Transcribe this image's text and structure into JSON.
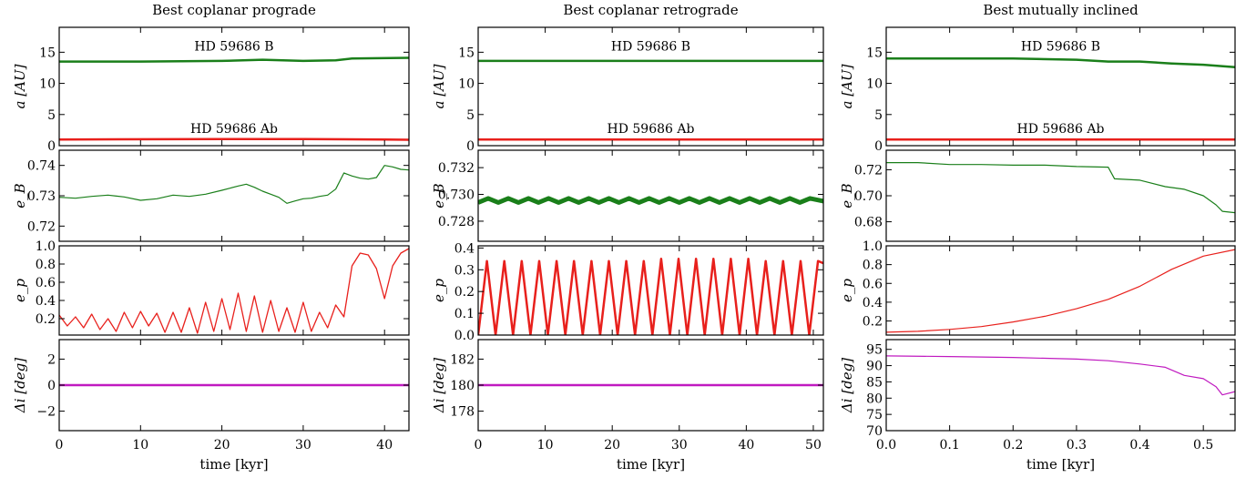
{
  "chart_data": [
    {
      "type": "line",
      "title": "Best coplanar prograde",
      "xlabel": "time [kyr]",
      "xlim": [
        0,
        43
      ],
      "xticks": [
        0,
        10,
        20,
        30,
        40
      ],
      "panels": [
        {
          "ylabel": "a [AU]",
          "ylim": [
            0,
            19
          ],
          "yticks": [
            0,
            5,
            10,
            15
          ],
          "annotations": [
            {
              "text": "HD 59686 B",
              "x": 21.5,
              "y": 16
            },
            {
              "text": "HD 59686 Ab",
              "x": 21.5,
              "y": 2.8
            }
          ],
          "series": [
            {
              "name": "HD 59686 B",
              "color": "#1a7f1a",
              "width": 2.5,
              "x": [
                0,
                10,
                20,
                25,
                30,
                34,
                36,
                43
              ],
              "y": [
                13.5,
                13.5,
                13.6,
                13.8,
                13.6,
                13.7,
                14.0,
                14.1
              ]
            },
            {
              "name": "HD 59686 Ab",
              "color": "#e8201c",
              "width": 2.5,
              "x": [
                0,
                20,
                30,
                40,
                43
              ],
              "y": [
                1.0,
                1.05,
                1.05,
                1.0,
                0.95
              ]
            }
          ]
        },
        {
          "ylabel": "e_B",
          "ylim": [
            0.715,
            0.745
          ],
          "yticks": [
            0.72,
            0.73,
            0.74
          ],
          "series": [
            {
              "color": "#1a7f1a",
              "width": 1.2,
              "x": [
                0,
                2,
                4,
                6,
                8,
                10,
                12,
                14,
                16,
                18,
                20,
                21,
                22,
                23,
                24,
                25,
                26,
                27,
                28,
                29,
                30,
                31,
                32,
                33,
                34,
                35,
                36,
                37,
                38,
                39,
                40,
                41,
                42,
                43
              ],
              "y": [
                0.7295,
                0.7292,
                0.7298,
                0.7302,
                0.7296,
                0.7285,
                0.729,
                0.7302,
                0.7298,
                0.7305,
                0.7318,
                0.7325,
                0.7332,
                0.7338,
                0.7328,
                0.7315,
                0.7305,
                0.7295,
                0.7275,
                0.7283,
                0.729,
                0.7292,
                0.7298,
                0.7302,
                0.7322,
                0.7375,
                0.7365,
                0.7358,
                0.7355,
                0.736,
                0.74,
                0.7395,
                0.7387,
                0.7385
              ]
            }
          ]
        },
        {
          "ylabel": "e_p",
          "ylim": [
            0.02,
            1.0
          ],
          "yticks": [
            0.2,
            0.4,
            0.6,
            0.8,
            1.0
          ],
          "series": [
            {
              "color": "#e8201c",
              "width": 1.3,
              "x": [
                0,
                1,
                2,
                3,
                4,
                5,
                6,
                7,
                8,
                9,
                10,
                11,
                12,
                13,
                14,
                15,
                16,
                17,
                18,
                19,
                20,
                21,
                22,
                23,
                24,
                25,
                26,
                27,
                28,
                29,
                30,
                31,
                32,
                33,
                34,
                35,
                36,
                37,
                38,
                39,
                40,
                41,
                42,
                43
              ],
              "y": [
                0.24,
                0.12,
                0.22,
                0.1,
                0.25,
                0.08,
                0.2,
                0.06,
                0.27,
                0.1,
                0.28,
                0.12,
                0.26,
                0.05,
                0.27,
                0.05,
                0.32,
                0.04,
                0.38,
                0.06,
                0.42,
                0.08,
                0.48,
                0.06,
                0.45,
                0.05,
                0.4,
                0.06,
                0.32,
                0.05,
                0.38,
                0.06,
                0.27,
                0.1,
                0.35,
                0.22,
                0.78,
                0.92,
                0.9,
                0.75,
                0.42,
                0.78,
                0.92,
                0.97
              ]
            }
          ]
        },
        {
          "ylabel": "Δi [deg]",
          "ylim": [
            -3.5,
            3.5
          ],
          "yticks": [
            -2,
            0,
            2
          ],
          "series": [
            {
              "color": "#c01ac0",
              "width": 2.5,
              "x": [
                0,
                43
              ],
              "y": [
                0,
                0
              ]
            }
          ]
        }
      ]
    },
    {
      "type": "line",
      "title": "Best coplanar retrograde",
      "xlabel": "time [kyr]",
      "xlim": [
        0,
        51.5
      ],
      "xticks": [
        0,
        10,
        20,
        30,
        40,
        50
      ],
      "panels": [
        {
          "ylabel": "a [AU]",
          "ylim": [
            0,
            19
          ],
          "yticks": [
            0,
            5,
            10,
            15
          ],
          "annotations": [
            {
              "text": "HD 59686 B",
              "x": 25.75,
              "y": 16
            },
            {
              "text": "HD 59686 Ab",
              "x": 25.75,
              "y": 2.8
            }
          ],
          "series": [
            {
              "name": "HD 59686 B",
              "color": "#1a7f1a",
              "width": 2.5,
              "x": [
                0,
                51.5
              ],
              "y": [
                13.6,
                13.6
              ]
            },
            {
              "name": "HD 59686 Ab",
              "color": "#e8201c",
              "width": 2.5,
              "x": [
                0,
                51.5
              ],
              "y": [
                1.0,
                1.0
              ]
            }
          ]
        },
        {
          "ylabel": "e_B",
          "ylim": [
            0.7265,
            0.7333
          ],
          "yticks": [
            0.728,
            0.73,
            0.732
          ],
          "series": [
            {
              "color": "#1a7f1a",
              "width": 5,
              "x": [
                0,
                1.5,
                3,
                4.5,
                6,
                7.5,
                9,
                10.5,
                12,
                13.5,
                15,
                16.5,
                18,
                19.5,
                21,
                22.5,
                24,
                25.5,
                27,
                28.5,
                30,
                31.5,
                33,
                34.5,
                36,
                37.5,
                39,
                40.5,
                42,
                43.5,
                45,
                46.5,
                48,
                49.5,
                51.5
              ],
              "y": [
                0.7294,
                0.7297,
                0.7294,
                0.7297,
                0.7294,
                0.7297,
                0.7294,
                0.7297,
                0.7294,
                0.7297,
                0.7294,
                0.7297,
                0.7294,
                0.7297,
                0.7294,
                0.7297,
                0.7294,
                0.7297,
                0.7294,
                0.7297,
                0.7294,
                0.7297,
                0.7294,
                0.7297,
                0.7294,
                0.7297,
                0.7294,
                0.7297,
                0.7294,
                0.7297,
                0.7294,
                0.7297,
                0.7294,
                0.7297,
                0.7295
              ]
            }
          ]
        },
        {
          "ylabel": "e_p",
          "ylim": [
            0.0,
            0.41
          ],
          "yticks": [
            0.0,
            0.1,
            0.2,
            0.3,
            0.4
          ],
          "series": [
            {
              "color": "#e8201c",
              "width": 2.5,
              "x": [
                0,
                1.3,
                2.6,
                3.9,
                5.2,
                6.5,
                7.8,
                9.1,
                10.4,
                11.7,
                13.0,
                14.3,
                15.6,
                16.9,
                18.2,
                19.5,
                20.8,
                22.1,
                23.4,
                24.7,
                26.0,
                27.3,
                28.6,
                29.9,
                31.2,
                32.5,
                33.8,
                35.1,
                36.4,
                37.7,
                39.0,
                40.3,
                41.6,
                42.9,
                44.2,
                45.5,
                46.8,
                48.1,
                49.4,
                50.7,
                51.5
              ],
              "y": [
                0.0,
                0.34,
                0.0,
                0.34,
                0.0,
                0.34,
                0.0,
                0.34,
                0.0,
                0.34,
                0.0,
                0.34,
                0.0,
                0.34,
                0.0,
                0.34,
                0.0,
                0.34,
                0.0,
                0.34,
                0.0,
                0.35,
                0.0,
                0.35,
                0.0,
                0.35,
                0.0,
                0.35,
                0.0,
                0.35,
                0.0,
                0.35,
                0.0,
                0.34,
                0.0,
                0.34,
                0.0,
                0.34,
                0.0,
                0.34,
                0.33
              ]
            }
          ]
        },
        {
          "ylabel": "Δi [deg]",
          "ylim": [
            176.5,
            183.5
          ],
          "yticks": [
            178,
            180,
            182
          ],
          "series": [
            {
              "color": "#c01ac0",
              "width": 2.5,
              "x": [
                0,
                51.5
              ],
              "y": [
                180,
                180
              ]
            }
          ]
        }
      ]
    },
    {
      "type": "line",
      "title": "Best mutually inclined",
      "xlabel": "time [kyr]",
      "xlim": [
        0,
        0.55
      ],
      "xticks": [
        0.0,
        0.1,
        0.2,
        0.3,
        0.4,
        0.5
      ],
      "panels": [
        {
          "ylabel": "a [AU]",
          "ylim": [
            0,
            19
          ],
          "yticks": [
            0,
            5,
            10,
            15
          ],
          "annotations": [
            {
              "text": "HD 59686 B",
              "x": 0.275,
              "y": 16
            },
            {
              "text": "HD 59686 Ab",
              "x": 0.275,
              "y": 2.8
            }
          ],
          "series": [
            {
              "name": "HD 59686 B",
              "color": "#1a7f1a",
              "width": 2.5,
              "x": [
                0.0,
                0.1,
                0.2,
                0.3,
                0.35,
                0.4,
                0.45,
                0.5,
                0.55
              ],
              "y": [
                14.0,
                14.0,
                14.0,
                13.8,
                13.5,
                13.5,
                13.2,
                13.0,
                12.6
              ]
            },
            {
              "name": "HD 59686 Ab",
              "color": "#e8201c",
              "width": 2.5,
              "x": [
                0.0,
                0.55
              ],
              "y": [
                1.0,
                1.0
              ]
            }
          ]
        },
        {
          "ylabel": "e_B",
          "ylim": [
            0.665,
            0.735
          ],
          "yticks": [
            0.68,
            0.7,
            0.72
          ],
          "series": [
            {
              "color": "#1a7f1a",
              "width": 1.2,
              "x": [
                0.0,
                0.05,
                0.1,
                0.15,
                0.2,
                0.25,
                0.3,
                0.35,
                0.36,
                0.4,
                0.44,
                0.47,
                0.5,
                0.52,
                0.53,
                0.55
              ],
              "y": [
                0.7255,
                0.7255,
                0.724,
                0.724,
                0.7235,
                0.7235,
                0.7225,
                0.722,
                0.713,
                0.712,
                0.707,
                0.705,
                0.7,
                0.693,
                0.688,
                0.687
              ]
            }
          ]
        },
        {
          "ylabel": "e_p",
          "ylim": [
            0.05,
            1.0
          ],
          "yticks": [
            0.2,
            0.4,
            0.6,
            0.8,
            1.0
          ],
          "series": [
            {
              "color": "#e8201c",
              "width": 1.2,
              "x": [
                0.0,
                0.05,
                0.1,
                0.15,
                0.2,
                0.25,
                0.3,
                0.35,
                0.4,
                0.45,
                0.5,
                0.55
              ],
              "y": [
                0.08,
                0.09,
                0.11,
                0.14,
                0.19,
                0.25,
                0.33,
                0.43,
                0.57,
                0.75,
                0.89,
                0.96
              ]
            }
          ]
        },
        {
          "ylabel": "Δi [deg]",
          "ylim": [
            70,
            98
          ],
          "yticks": [
            70,
            75,
            80,
            85,
            90,
            95
          ],
          "series": [
            {
              "color": "#c01ac0",
              "width": 1.2,
              "x": [
                0.0,
                0.1,
                0.2,
                0.3,
                0.35,
                0.4,
                0.44,
                0.47,
                0.5,
                0.52,
                0.53,
                0.55
              ],
              "y": [
                93,
                92.8,
                92.5,
                92,
                91.5,
                90.5,
                89.5,
                87,
                86,
                83.5,
                81,
                82
              ]
            }
          ]
        }
      ]
    }
  ]
}
